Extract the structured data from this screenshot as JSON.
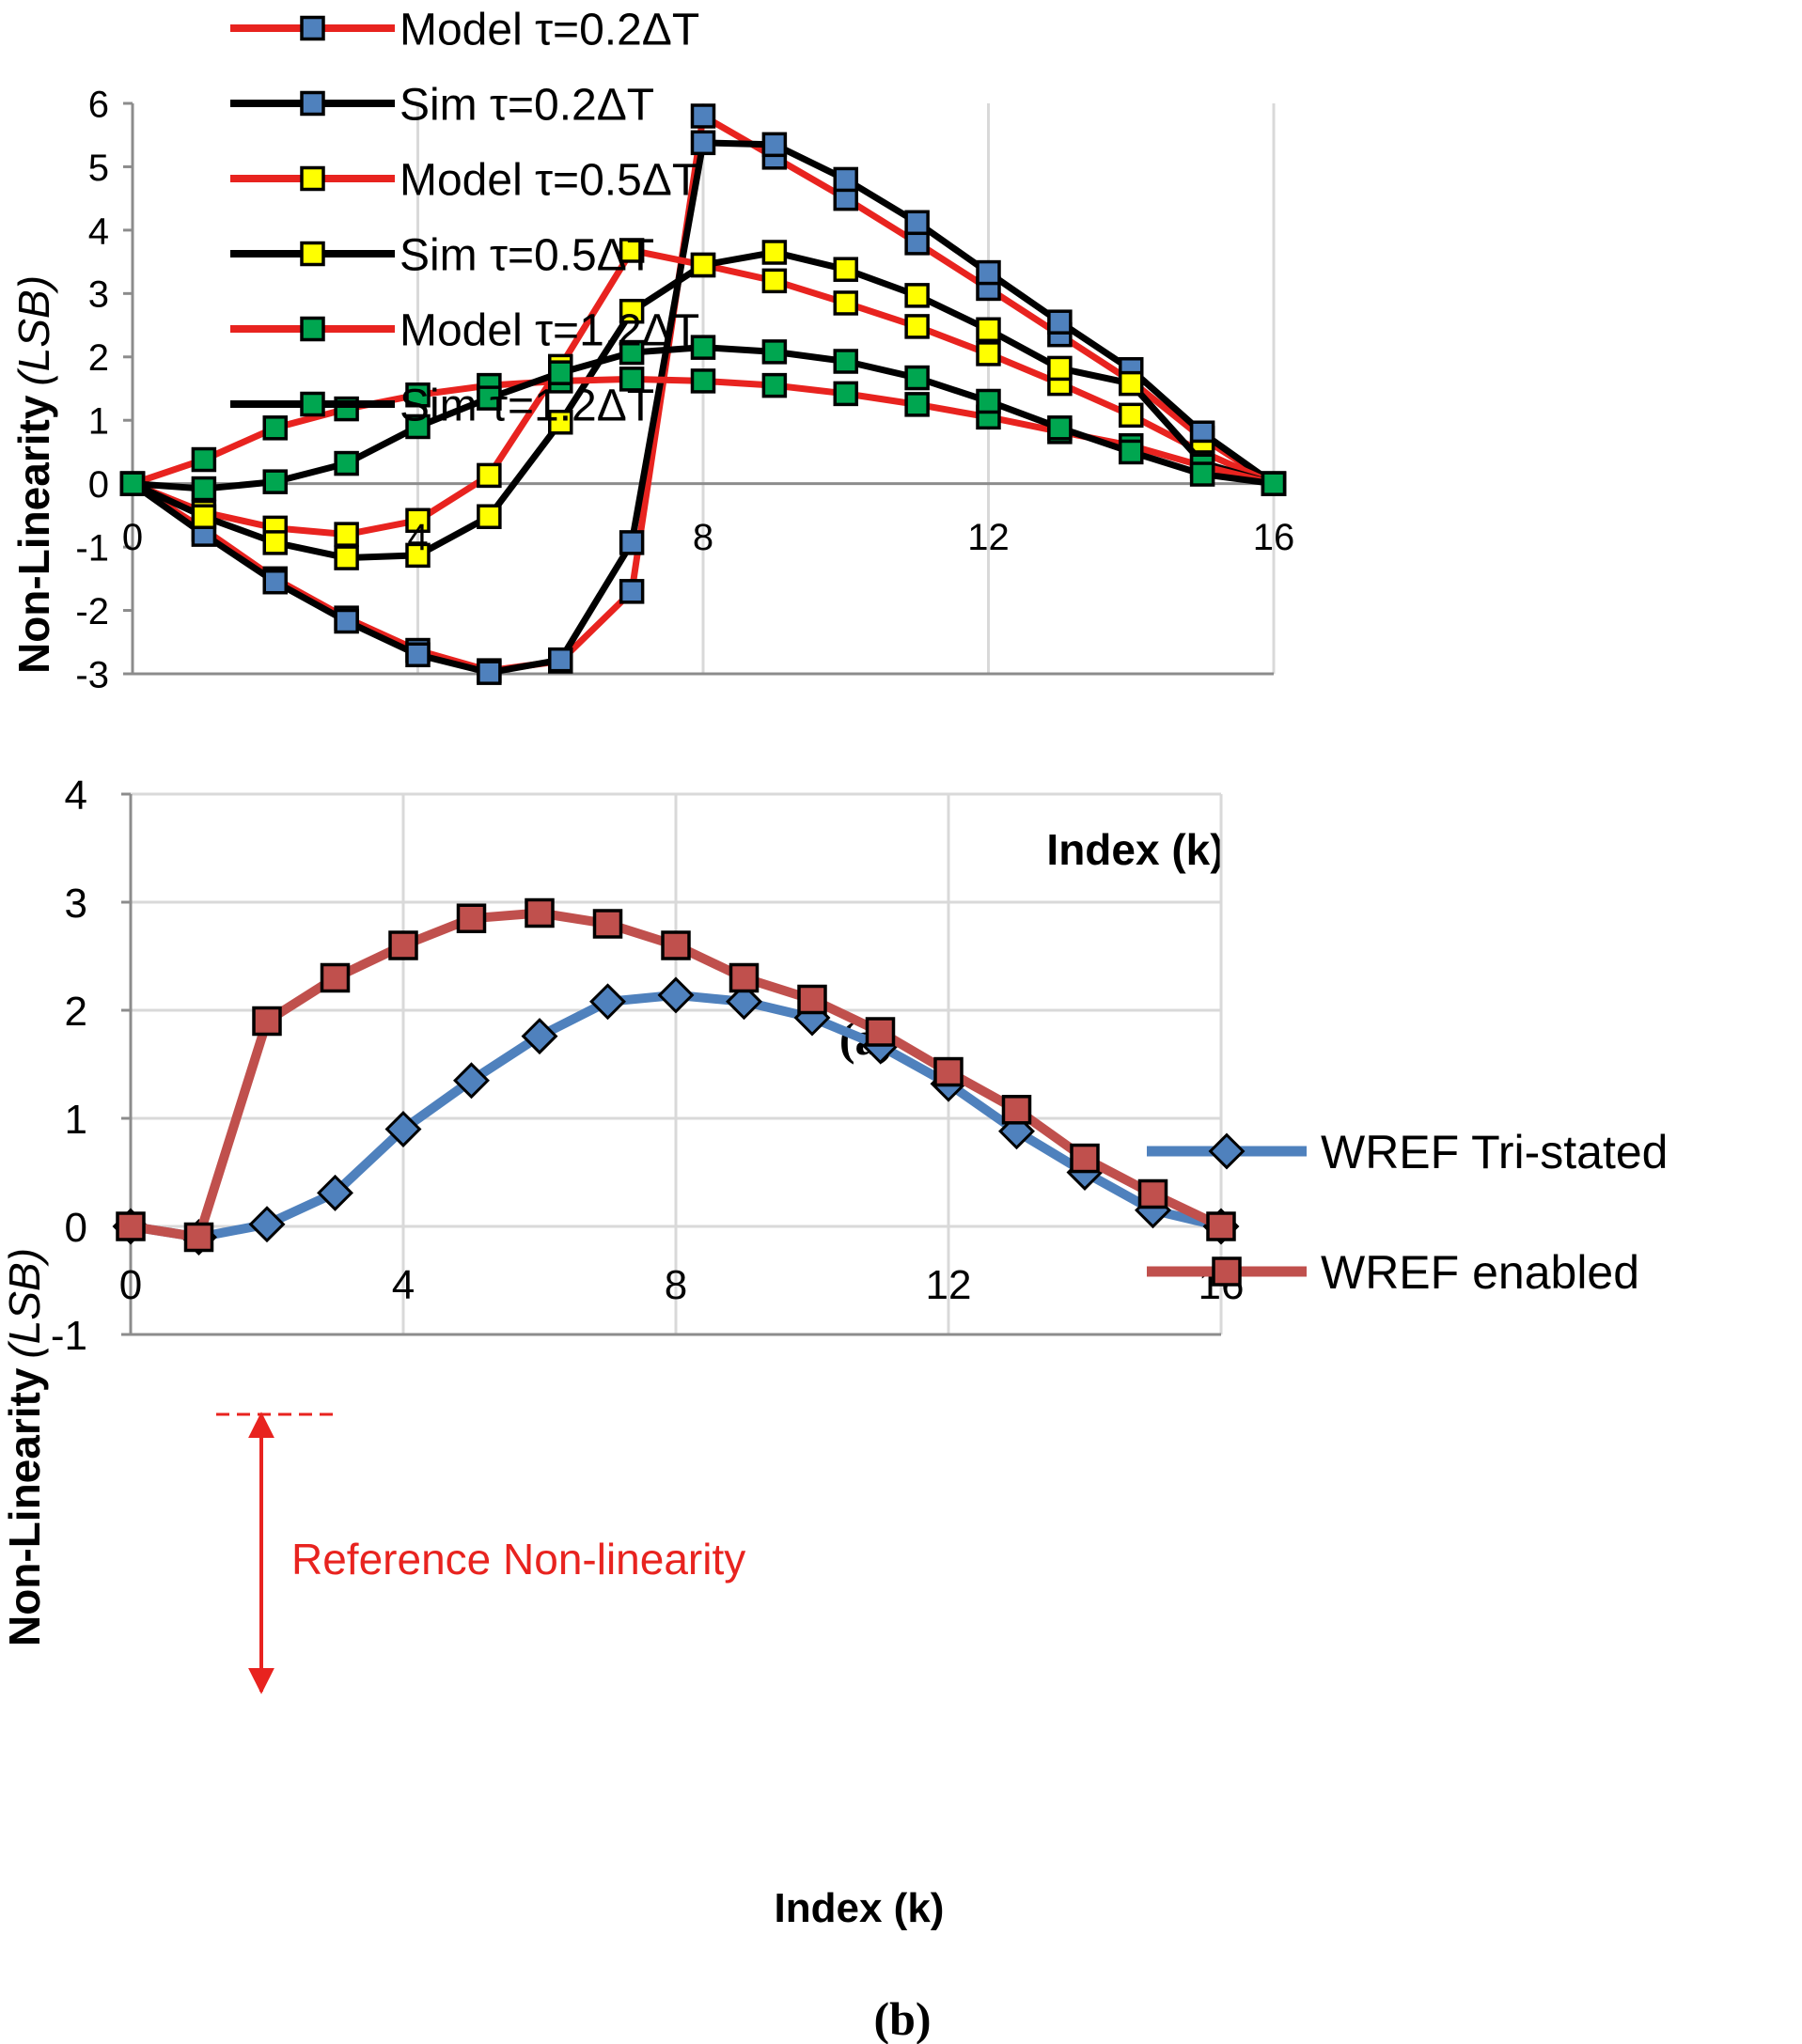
{
  "chart_data": [
    {
      "panel": "a",
      "type": "line",
      "caption": "(a)",
      "xlabel": "Index (k)",
      "ylabel": "Non-Linearity",
      "ylabel_unit": "(LSB)",
      "xlim": [
        0,
        16
      ],
      "ylim": [
        -3,
        6
      ],
      "xticks": [
        "0",
        "4",
        "8",
        "12",
        "16"
      ],
      "yticks": [
        "-3",
        "-2",
        "-1",
        "0",
        "1",
        "2",
        "3",
        "4",
        "5",
        "6"
      ],
      "grid": "vertical",
      "legend": "top-left",
      "x": [
        0,
        1,
        2,
        3,
        4,
        5,
        6,
        7,
        8,
        9,
        10,
        11,
        12,
        13,
        14,
        15,
        16
      ],
      "series": [
        {
          "name": "Model τ=0.2ΔT",
          "line_color": "#e8231f",
          "marker_color": "#4f81bd",
          "values": [
            0,
            -0.72,
            -1.5,
            -2.12,
            -2.63,
            -2.95,
            -2.8,
            -1.7,
            5.8,
            5.15,
            4.5,
            3.8,
            3.08,
            2.35,
            1.62,
            0.72,
            0
          ]
        },
        {
          "name": "Sim τ=0.2ΔT",
          "line_color": "#000000",
          "marker_color": "#4f81bd",
          "values": [
            0,
            -0.8,
            -1.55,
            -2.17,
            -2.7,
            -2.98,
            -2.78,
            -0.93,
            5.38,
            5.35,
            4.8,
            4.12,
            3.33,
            2.55,
            1.8,
            0.8,
            0
          ]
        },
        {
          "name": "Model τ=0.5ΔT",
          "line_color": "#e8231f",
          "marker_color": "#ffff00",
          "values": [
            0,
            -0.45,
            -0.7,
            -0.8,
            -0.58,
            0.13,
            1.85,
            3.68,
            3.45,
            3.2,
            2.85,
            2.48,
            2.05,
            1.58,
            1.08,
            0.5,
            0
          ]
        },
        {
          "name": "Sim τ=0.5ΔT",
          "line_color": "#000000",
          "marker_color": "#ffff00",
          "values": [
            0,
            -0.52,
            -0.93,
            -1.17,
            -1.13,
            -0.52,
            0.97,
            2.72,
            3.45,
            3.65,
            3.38,
            2.97,
            2.43,
            1.82,
            1.58,
            0.33,
            0
          ]
        },
        {
          "name": "Model τ=1.2ΔT",
          "line_color": "#e8231f",
          "marker_color": "#00a650",
          "values": [
            0,
            0.38,
            0.88,
            1.18,
            1.4,
            1.55,
            1.62,
            1.65,
            1.62,
            1.55,
            1.42,
            1.25,
            1.05,
            0.82,
            0.6,
            0.28,
            0
          ]
        },
        {
          "name": "Sim τ=1.2ΔT",
          "line_color": "#000000",
          "marker_color": "#00a650",
          "values": [
            0,
            -0.08,
            0.03,
            0.32,
            0.9,
            1.35,
            1.75,
            2.07,
            2.15,
            2.08,
            1.93,
            1.67,
            1.3,
            0.88,
            0.5,
            0.15,
            0
          ]
        }
      ]
    },
    {
      "panel": "b",
      "type": "line",
      "caption": "(b)",
      "xlabel": "Index (k)",
      "ylabel": "Non-Linearity",
      "ylabel_unit": "(LSB)",
      "xlim": [
        0,
        16
      ],
      "ylim": [
        -1,
        4
      ],
      "xticks": [
        "0",
        "4",
        "8",
        "12",
        "16"
      ],
      "yticks": [
        "-1",
        "0",
        "1",
        "2",
        "3",
        "4"
      ],
      "grid": "both",
      "legend": "top-right",
      "annotation": {
        "text": "Reference Non-linearity",
        "color": "#e8231f",
        "from_y": 0,
        "to_y": 1.93,
        "x": 1
      },
      "x": [
        0,
        1,
        2,
        3,
        4,
        5,
        6,
        7,
        8,
        9,
        10,
        11,
        12,
        13,
        14,
        15,
        16
      ],
      "series": [
        {
          "name": "WREF Tri-stated",
          "line_color": "#4f81bd",
          "marker_color": "#4f81bd",
          "marker": "diamond",
          "values": [
            0,
            -0.1,
            0.02,
            0.31,
            0.9,
            1.35,
            1.76,
            2.08,
            2.14,
            2.08,
            1.93,
            1.67,
            1.32,
            0.88,
            0.5,
            0.15,
            0
          ]
        },
        {
          "name": "WREF enabled",
          "line_color": "#c0504d",
          "marker_color": "#c0504d",
          "marker": "square",
          "values": [
            0,
            -0.1,
            1.9,
            2.3,
            2.6,
            2.85,
            2.9,
            2.8,
            2.6,
            2.3,
            2.1,
            1.8,
            1.43,
            1.08,
            0.63,
            0.3,
            0
          ]
        }
      ]
    }
  ]
}
